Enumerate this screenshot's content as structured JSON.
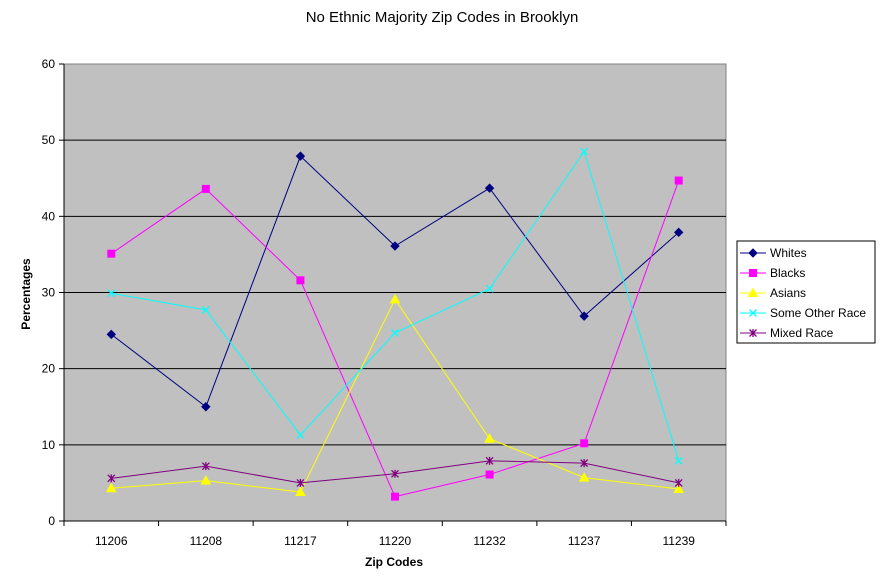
{
  "chart_data": {
    "type": "line",
    "title": "No Ethnic Majority Zip Codes in Brooklyn",
    "xlabel": "Zip Codes",
    "ylabel": "Percentages",
    "categories": [
      "11206",
      "11208",
      "11217",
      "11220",
      "11232",
      "11237",
      "11239"
    ],
    "ylim": [
      0,
      60
    ],
    "yticks": [
      0,
      10,
      20,
      30,
      40,
      50,
      60
    ],
    "grid": true,
    "legend_position": "right",
    "plot_background": "#c0c0c0",
    "series": [
      {
        "name": "Whites",
        "color": "#000080",
        "marker": "diamond",
        "values": [
          24.5,
          15.0,
          47.9,
          36.1,
          43.7,
          26.9,
          37.9
        ]
      },
      {
        "name": "Blacks",
        "color": "#ff00ff",
        "marker": "square",
        "values": [
          35.1,
          43.6,
          31.6,
          3.2,
          6.1,
          10.2,
          44.7
        ]
      },
      {
        "name": "Asians",
        "color": "#ffff00",
        "marker": "triangle",
        "values": [
          4.3,
          5.3,
          3.8,
          29.1,
          10.8,
          5.7,
          4.2
        ]
      },
      {
        "name": "Some Other Race",
        "color": "#00ffff",
        "marker": "x",
        "values": [
          29.9,
          27.7,
          11.3,
          24.7,
          30.5,
          48.5,
          7.9
        ]
      },
      {
        "name": "Mixed Race",
        "color": "#800080",
        "marker": "star",
        "values": [
          5.6,
          7.2,
          5.0,
          6.2,
          7.9,
          7.6,
          5.0
        ]
      }
    ]
  }
}
